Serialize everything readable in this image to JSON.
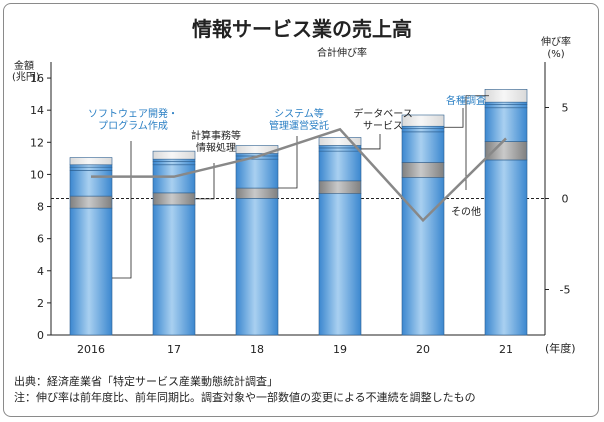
{
  "chart_data": {
    "type": "bar",
    "title": "情報サービス業の売上高",
    "categories": [
      "2016",
      "17",
      "18",
      "19",
      "20",
      "21"
    ],
    "x_unit": "(年度)",
    "y_label_line1": "金額",
    "y_label_line2": "(兆円)",
    "ylim": [
      0,
      17
    ],
    "yticks": [
      0,
      2,
      4,
      6,
      8,
      10,
      12,
      14,
      16
    ],
    "segments_note": "stacked segments from bottom: ソフトウェア開発・プログラム作成, 計算事務等情報処理, システム等管理運営受託, データベースサービス, 各種調査, その他",
    "series": [
      {
        "name": "ソフトウェア開発・プログラム作成",
        "values": [
          7.9,
          8.1,
          8.5,
          8.8,
          9.8,
          10.9
        ]
      },
      {
        "name": "計算事務等情報処理",
        "values": [
          0.75,
          0.75,
          0.65,
          0.8,
          0.95,
          1.15
        ]
      },
      {
        "name": "システム等管理運営受託",
        "values": [
          1.6,
          1.75,
          1.8,
          1.85,
          1.9,
          2.1
        ]
      },
      {
        "name": "データベースサービス",
        "values": [
          0.2,
          0.2,
          0.2,
          0.2,
          0.2,
          0.2
        ]
      },
      {
        "name": "各種調査",
        "values": [
          0.15,
          0.15,
          0.15,
          0.15,
          0.15,
          0.15
        ]
      },
      {
        "name": "その他",
        "values": [
          0.45,
          0.5,
          0.5,
          0.5,
          0.7,
          0.8
        ]
      }
    ],
    "growth_series": {
      "name": "合計伸び率",
      "values": [
        1.2,
        1.2,
        2.3,
        3.8,
        -1.2,
        3.3
      ],
      "axis_label_line1": "伸び率",
      "axis_label_line2": "(%)",
      "axis_ticks": [
        5,
        0,
        -5
      ],
      "axis_tick_labels": [
        "5",
        "0",
        "-5"
      ],
      "ylim": [
        -7.5,
        7.5
      ]
    },
    "colors": {
      "software": "#3f8fd6",
      "software_light": "#a9d0f0",
      "gray_segment": "#8c8c8c",
      "gray_segment_light": "#c8c8c8",
      "growth_line": "#888888",
      "blue_text": "#2a7fc4"
    },
    "grid": false,
    "annotations": {
      "software": [
        "ソフトウェア開発・",
        "プログラム作成"
      ],
      "keisan": [
        "計算事務等",
        "情報処理"
      ],
      "system": [
        "システム等",
        "管理運営受託"
      ],
      "database": [
        "データベース",
        "サービス"
      ],
      "kakushu": [
        "各種調査"
      ],
      "sonota": [
        "その他"
      ]
    }
  },
  "notes": {
    "source": "出典：経済産業省「特定サービス産業動態統計調査」",
    "note": "注：伸び率は前年度比、前年同期比。調査対象や一部数値の変更による不連続を調整したもの"
  }
}
